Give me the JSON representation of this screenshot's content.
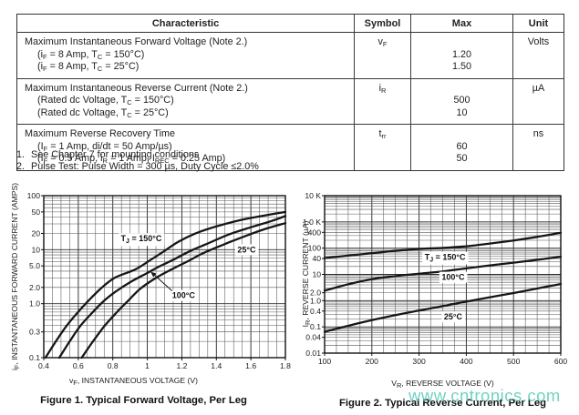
{
  "page": {
    "background": "#ffffff",
    "text_color": "#222222"
  },
  "table": {
    "headers": [
      "Characteristic",
      "Symbol",
      "Max",
      "Unit"
    ],
    "rows": [
      {
        "characteristic": "Maximum Instantaneous Forward Voltage (Note 2.)",
        "conditions_rich": [
          [
            {
              "t": "(i"
            },
            {
              "sub": "F"
            },
            {
              "t": " = 8 Amp, T"
            },
            {
              "sub": "C"
            },
            {
              "t": " = 150°C)"
            }
          ],
          [
            {
              "t": "(i"
            },
            {
              "sub": "F"
            },
            {
              "t": " = 8 Amp, T"
            },
            {
              "sub": "C"
            },
            {
              "t": " = 25°C)"
            }
          ]
        ],
        "symbol_rich": [
          {
            "t": "v"
          },
          {
            "sub": "F"
          }
        ],
        "max_values": [
          "1.20",
          "1.50"
        ],
        "unit": "Volts"
      },
      {
        "characteristic": "Maximum Instantaneous Reverse Current (Note 2.)",
        "conditions_rich": [
          [
            {
              "t": "(Rated dc Voltage, T"
            },
            {
              "sub": "C"
            },
            {
              "t": " = 150°C)"
            }
          ],
          [
            {
              "t": "(Rated dc Voltage, T"
            },
            {
              "sub": "C"
            },
            {
              "t": " = 25°C)"
            }
          ]
        ],
        "symbol_rich": [
          {
            "t": "i"
          },
          {
            "sub": "R"
          }
        ],
        "max_values": [
          "500",
          "10"
        ],
        "unit": "µA"
      },
      {
        "characteristic": "Maximum Reverse Recovery Time",
        "conditions_rich": [
          [
            {
              "t": "(I"
            },
            {
              "sub": "F"
            },
            {
              "t": " = 1 Amp, di/dt = 50 Amp/µs)"
            }
          ],
          [
            {
              "t": "(I"
            },
            {
              "sub": "F"
            },
            {
              "t": " = 0.5 Amp, i"
            },
            {
              "sub": "R"
            },
            {
              "t": " = 1 Amp, I"
            },
            {
              "sub": "REC"
            },
            {
              "t": " = 0.25 Amp)"
            }
          ]
        ],
        "symbol_rich": [
          {
            "t": "t"
          },
          {
            "sub": "rr"
          }
        ],
        "max_values": [
          "60",
          "50"
        ],
        "unit": "ns"
      }
    ]
  },
  "notes": [
    {
      "num": "1.",
      "text": "See Chapter 7 for mounting conditions"
    },
    {
      "num": "2.",
      "text": "Pulse Test: Pulse Width = 300 µs, Duty Cycle ≤2.0%"
    }
  ],
  "watermark": {
    "text": "www.cntronics.com",
    "color": "#4ec7b3"
  },
  "chart_data": [
    {
      "type": "line",
      "title": "Figure 1. Typical Forward Voltage, Per Leg",
      "xlabel": "vF, INSTANTANEOUS VOLTAGE (V)",
      "ylabel": "iF, INSTANTANEOUS FORWARD CURRENT (AMPS)",
      "xlabel_rich": [
        {
          "t": "v"
        },
        {
          "sub": "F"
        },
        {
          "t": ", INSTANTANEOUS VOLTAGE (V)"
        }
      ],
      "ylabel_rich": [
        {
          "t": "i"
        },
        {
          "sub": "F"
        },
        {
          "t": ", INSTANTANEOUS FORWARD CURRENT (AMPS)"
        }
      ],
      "x_scale": "linear",
      "y_scale": "log",
      "xlim": [
        0.4,
        1.8
      ],
      "ylim": [
        0.1,
        100
      ],
      "x_minor_step": 0.05,
      "grid": true,
      "legend": "in-plot labels",
      "xticks": [
        {
          "v": 0.4,
          "label": "0.4"
        },
        {
          "v": 0.6,
          "label": "0.6"
        },
        {
          "v": 0.8,
          "label": "0.8"
        },
        {
          "v": 1.0,
          "label": "1"
        },
        {
          "v": 1.2,
          "label": "1.2"
        },
        {
          "v": 1.4,
          "label": "1.4"
        },
        {
          "v": 1.6,
          "label": "1.6"
        },
        {
          "v": 1.8,
          "label": "1.8"
        }
      ],
      "yticks": [
        {
          "v": 100,
          "label": "100"
        },
        {
          "v": 50,
          "label": "50"
        },
        {
          "v": 20,
          "label": "20"
        },
        {
          "v": 10,
          "label": "10"
        },
        {
          "v": 5,
          "label": "5.0"
        },
        {
          "v": 2,
          "label": "2.0"
        },
        {
          "v": 1,
          "label": "1.0"
        },
        {
          "v": 0.3,
          "label": "0.3"
        },
        {
          "v": 0.1,
          "label": "0.1"
        }
      ],
      "series": [
        {
          "name": "TJ = 150°C",
          "points": [
            [
              0.41,
              0.1
            ],
            [
              0.47,
              0.2
            ],
            [
              0.53,
              0.38
            ],
            [
              0.59,
              0.65
            ],
            [
              0.655,
              1.1
            ],
            [
              0.73,
              1.9
            ],
            [
              0.81,
              3.0
            ],
            [
              0.93,
              4.3
            ],
            [
              1.02,
              6.5
            ],
            [
              1.1,
              9.5
            ],
            [
              1.18,
              14
            ],
            [
              1.28,
              20
            ],
            [
              1.4,
              27
            ],
            [
              1.55,
              36
            ],
            [
              1.68,
              43
            ],
            [
              1.8,
              50
            ]
          ]
        },
        {
          "name": "100°C",
          "points": [
            [
              0.49,
              0.1
            ],
            [
              0.55,
              0.2
            ],
            [
              0.61,
              0.38
            ],
            [
              0.675,
              0.65
            ],
            [
              0.745,
              1.1
            ],
            [
              0.82,
              1.7
            ],
            [
              0.91,
              2.6
            ],
            [
              1.0,
              3.7
            ],
            [
              1.07,
              4.9
            ],
            [
              1.15,
              6.5
            ],
            [
              1.25,
              9.5
            ],
            [
              1.35,
              13
            ],
            [
              1.47,
              19
            ],
            [
              1.6,
              26
            ],
            [
              1.72,
              34
            ],
            [
              1.8,
              42
            ]
          ]
        },
        {
          "name": "25°C",
          "points": [
            [
              0.62,
              0.1
            ],
            [
              0.685,
              0.2
            ],
            [
              0.75,
              0.38
            ],
            [
              0.815,
              0.65
            ],
            [
              0.885,
              1.1
            ],
            [
              0.96,
              1.9
            ],
            [
              1.05,
              3.0
            ],
            [
              1.14,
              4.3
            ],
            [
              1.23,
              6.0
            ],
            [
              1.32,
              8.5
            ],
            [
              1.43,
              12
            ],
            [
              1.55,
              17
            ],
            [
              1.68,
              24
            ],
            [
              1.8,
              31
            ]
          ]
        }
      ],
      "annotations": [
        {
          "rich": [
            {
              "t": "T"
            },
            {
              "sub": "J"
            },
            {
              "t": " = 150°C"
            }
          ],
          "x": 0.965,
          "y": 16
        },
        {
          "rich": [
            {
              "t": "25°C"
            }
          ],
          "x": 1.575,
          "y": 10
        },
        {
          "rich": [
            {
              "t": "100°C"
            }
          ],
          "x": 1.21,
          "y": 1.42,
          "arrow": {
            "x": 1.02,
            "y": 3.9
          }
        }
      ]
    },
    {
      "type": "line",
      "title": "Figure 2. Typical Reverse Current, Per Leg",
      "xlabel": "VR, REVERSE VOLTAGE (V)",
      "ylabel": "IR, REVERSE CURRENT (µA)",
      "xlabel_rich": [
        {
          "t": "V"
        },
        {
          "sub": "R"
        },
        {
          "t": ", REVERSE VOLTAGE (V)"
        }
      ],
      "ylabel_rich": [
        {
          "t": "I"
        },
        {
          "sub": "R"
        },
        {
          "t": ", REVERSE CURRENT (µA)"
        }
      ],
      "x_scale": "linear",
      "y_scale": "log",
      "xlim": [
        100,
        600
      ],
      "ylim": [
        0.01,
        10000
      ],
      "x_minor_step": 25,
      "grid": true,
      "legend": "in-plot labels",
      "xticks": [
        {
          "v": 100,
          "label": "100"
        },
        {
          "v": 200,
          "label": "200"
        },
        {
          "v": 300,
          "label": "300"
        },
        {
          "v": 400,
          "label": "400"
        },
        {
          "v": 500,
          "label": "500"
        },
        {
          "v": 600,
          "label": "600"
        }
      ],
      "yticks": [
        {
          "v": 10000,
          "label": "10 K"
        },
        {
          "v": 1000,
          "label": "1.0 K"
        },
        {
          "v": 400,
          "label": "400"
        },
        {
          "v": 100,
          "label": "100"
        },
        {
          "v": 40,
          "label": "40"
        },
        {
          "v": 10,
          "label": "10"
        },
        {
          "v": 2,
          "label": "2.0"
        },
        {
          "v": 1,
          "label": "1.0"
        },
        {
          "v": 0.4,
          "label": "0.4"
        },
        {
          "v": 0.1,
          "label": "0.1"
        },
        {
          "v": 0.04,
          "label": "0.04"
        },
        {
          "v": 0.01,
          "label": "0.01"
        }
      ],
      "series": [
        {
          "name": "TJ = 150°C",
          "points": [
            [
              100,
              42
            ],
            [
              150,
              52
            ],
            [
              200,
              64
            ],
            [
              250,
              79
            ],
            [
              300,
              93
            ],
            [
              350,
              102
            ],
            [
              400,
              118
            ],
            [
              450,
              150
            ],
            [
              500,
              196
            ],
            [
              550,
              268
            ],
            [
              600,
              385
            ]
          ]
        },
        {
          "name": "100°C",
          "points": [
            [
              100,
              2.4
            ],
            [
              150,
              4.2
            ],
            [
              200,
              6.6
            ],
            [
              250,
              8.6
            ],
            [
              300,
              10.6
            ],
            [
              350,
              13
            ],
            [
              400,
              17
            ],
            [
              450,
              22
            ],
            [
              500,
              28
            ],
            [
              550,
              36
            ],
            [
              600,
              47
            ]
          ]
        },
        {
          "name": "25°C",
          "points": [
            [
              100,
              0.065
            ],
            [
              150,
              0.11
            ],
            [
              200,
              0.18
            ],
            [
              250,
              0.28
            ],
            [
              300,
              0.42
            ],
            [
              350,
              0.62
            ],
            [
              400,
              0.92
            ],
            [
              450,
              1.35
            ],
            [
              500,
              1.95
            ],
            [
              550,
              2.9
            ],
            [
              600,
              4.3
            ]
          ]
        }
      ],
      "annotations": [
        {
          "rich": [
            {
              "t": "T"
            },
            {
              "sub": "J"
            },
            {
              "t": " = 150°C"
            }
          ],
          "x": 355,
          "y": 45
        },
        {
          "rich": [
            {
              "t": "100°C"
            }
          ],
          "x": 372,
          "y": 7.8
        },
        {
          "rich": [
            {
              "t": "25°C"
            }
          ],
          "x": 372,
          "y": 0.24
        }
      ]
    }
  ]
}
